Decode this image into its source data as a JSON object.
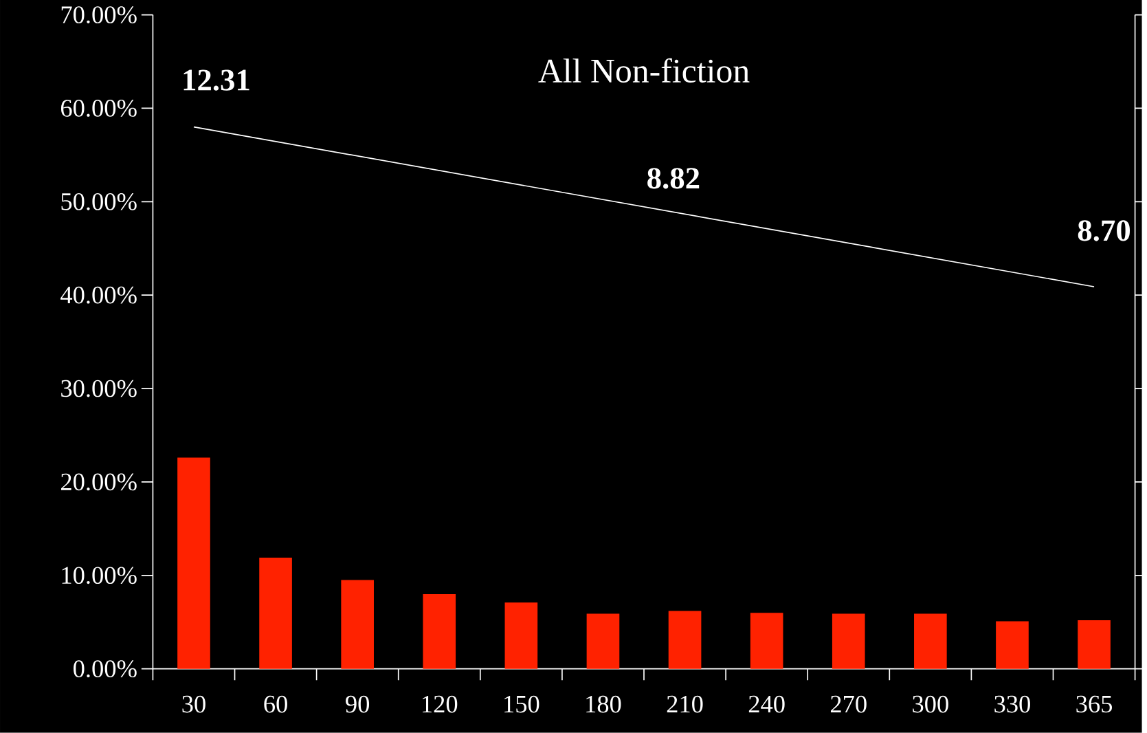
{
  "chart_data": {
    "type": "bar",
    "title": "All Non-fiction",
    "categories": [
      "30",
      "60",
      "90",
      "120",
      "150",
      "180",
      "210",
      "240",
      "270",
      "300",
      "330",
      "365"
    ],
    "series": [
      {
        "color": "#ff2200",
        "values": [
          22.6,
          11.9,
          9.5,
          8.0,
          7.1,
          5.9,
          6.2,
          6.0,
          5.9,
          5.9,
          5.1,
          5.2
        ]
      },
      {
        "type": "line",
        "color": "#ffffff",
        "x": [
          "30",
          "365"
        ],
        "values": [
          58.0,
          40.9
        ]
      }
    ],
    "ylim": [
      0,
      70
    ],
    "yticks": [
      {
        "value": 0,
        "label": "0.00%"
      },
      {
        "value": 10,
        "label": "10.00%"
      },
      {
        "value": 20,
        "label": "20.00%"
      },
      {
        "value": 30,
        "label": "30.00%"
      },
      {
        "value": 40,
        "label": "40.00%"
      },
      {
        "value": 50,
        "label": "50.00%"
      },
      {
        "value": 60,
        "label": "60.00%"
      },
      {
        "value": 70,
        "label": "70.00%"
      }
    ],
    "annotations": [
      "12.31",
      "8.82",
      "8.70"
    ]
  }
}
